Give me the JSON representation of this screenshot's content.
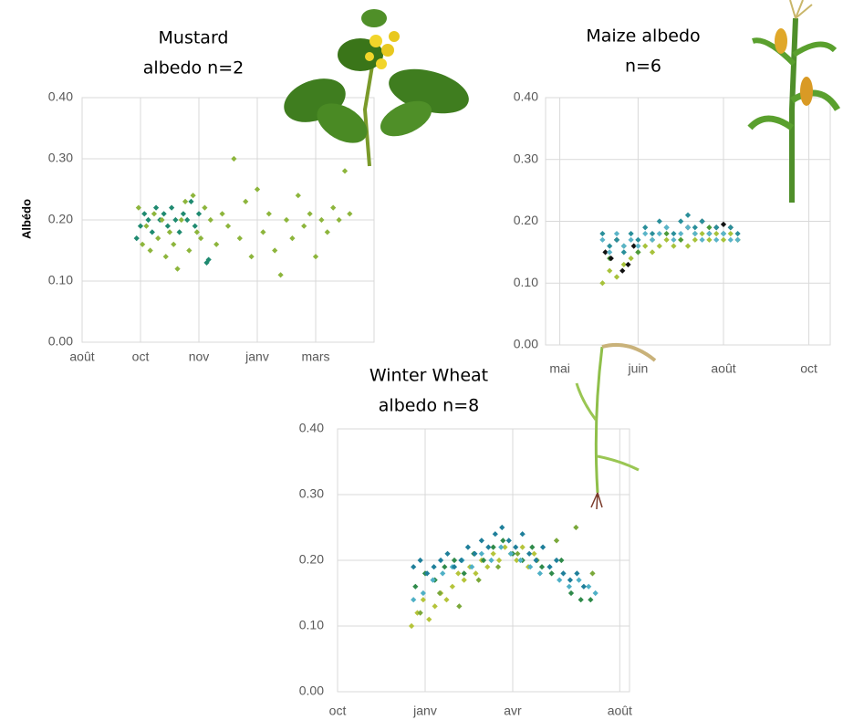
{
  "chart_data": [
    {
      "type": "scatter",
      "title": [
        "Mustard",
        "albedo n=2"
      ],
      "ylabel": "Albédo",
      "xlim": [
        0,
        300
      ],
      "ylim": [
        0,
        0.4
      ],
      "xticks": [
        {
          "value": 0,
          "label": "août"
        },
        {
          "value": 60,
          "label": "oct"
        },
        {
          "value": 120,
          "label": "nov"
        },
        {
          "value": 180,
          "label": "janv"
        },
        {
          "value": 240,
          "label": "mars"
        }
      ],
      "yticks": [
        {
          "value": 0,
          "label": "0.00"
        },
        {
          "value": 0.1,
          "label": "0.10"
        },
        {
          "value": 0.2,
          "label": "0.20"
        },
        {
          "value": 0.3,
          "label": "0.30"
        },
        {
          "value": 0.4,
          "label": "0.40"
        }
      ],
      "grid": true,
      "series": [
        {
          "color": "#1f8a70",
          "x": [
            56,
            60,
            64,
            68,
            72,
            76,
            80,
            84,
            88,
            92,
            96,
            100,
            104,
            108,
            112,
            116,
            120,
            128,
            130
          ],
          "values": [
            0.17,
            0.19,
            0.21,
            0.2,
            0.18,
            0.22,
            0.2,
            0.21,
            0.19,
            0.22,
            0.2,
            0.18,
            0.21,
            0.2,
            0.23,
            0.19,
            0.21,
            0.13,
            0.135
          ]
        },
        {
          "color": "#8db53c",
          "x": [
            58,
            62,
            66,
            70,
            74,
            78,
            82,
            86,
            90,
            94,
            98,
            102,
            106,
            110,
            114,
            118,
            122,
            126,
            132,
            138,
            144,
            150,
            156,
            162,
            168,
            174,
            180,
            186,
            192,
            198,
            204,
            210,
            216,
            222,
            228,
            234,
            240,
            246,
            252,
            258,
            264,
            270,
            275
          ],
          "values": [
            0.22,
            0.16,
            0.19,
            0.15,
            0.21,
            0.17,
            0.2,
            0.14,
            0.18,
            0.16,
            0.12,
            0.2,
            0.23,
            0.15,
            0.24,
            0.18,
            0.17,
            0.22,
            0.2,
            0.16,
            0.21,
            0.19,
            0.3,
            0.17,
            0.23,
            0.14,
            0.25,
            0.18,
            0.21,
            0.15,
            0.11,
            0.2,
            0.17,
            0.24,
            0.19,
            0.21,
            0.14,
            0.2,
            0.18,
            0.22,
            0.2,
            0.28,
            0.21
          ]
        }
      ]
    },
    {
      "type": "scatter",
      "title": [
        "Maize albedo",
        "n=6"
      ],
      "xlim": [
        0,
        200
      ],
      "ylim": [
        0,
        0.4
      ],
      "xticks": [
        {
          "value": 10,
          "label": "mai"
        },
        {
          "value": 65,
          "label": "juin"
        },
        {
          "value": 125,
          "label": "août"
        },
        {
          "value": 185,
          "label": "oct"
        }
      ],
      "yticks": [
        {
          "value": 0,
          "label": "0.00"
        },
        {
          "value": 0.1,
          "label": "0.10"
        },
        {
          "value": 0.2,
          "label": "0.20"
        },
        {
          "value": 0.3,
          "label": "0.30"
        },
        {
          "value": 0.4,
          "label": "0.40"
        }
      ],
      "grid": true,
      "series": [
        {
          "color": "#a7c23b",
          "x": [
            40,
            45,
            50,
            55,
            60,
            65,
            70,
            75,
            80,
            85,
            90,
            95,
            100,
            105,
            110,
            115,
            120,
            125,
            130,
            135
          ],
          "values": [
            0.1,
            0.12,
            0.11,
            0.13,
            0.14,
            0.15,
            0.16,
            0.15,
            0.16,
            0.17,
            0.16,
            0.17,
            0.16,
            0.17,
            0.18,
            0.17,
            0.18,
            0.17,
            0.18,
            0.17
          ]
        },
        {
          "color": "#4c9a3a",
          "x": [
            45,
            55,
            65,
            75,
            85,
            95,
            105,
            115,
            125,
            135
          ],
          "values": [
            0.14,
            0.16,
            0.15,
            0.17,
            0.18,
            0.17,
            0.18,
            0.19,
            0.18,
            0.17
          ]
        },
        {
          "color": "#111111",
          "x": [
            42,
            46,
            50,
            54,
            58,
            62,
            100,
            110,
            115,
            120,
            125,
            130
          ],
          "values": [
            0.15,
            0.14,
            0.17,
            0.12,
            0.13,
            0.16,
            0.19,
            0.2,
            0.18,
            0.19,
            0.195,
            0.19
          ]
        },
        {
          "color": "#2a8f9a",
          "x": [
            40,
            45,
            50,
            55,
            60,
            65,
            70,
            75,
            80,
            85,
            90,
            95,
            100,
            105,
            110,
            115,
            120,
            125,
            130,
            135
          ],
          "values": [
            0.18,
            0.16,
            0.17,
            0.15,
            0.18,
            0.17,
            0.19,
            0.18,
            0.2,
            0.19,
            0.18,
            0.2,
            0.21,
            0.19,
            0.2,
            0.18,
            0.19,
            0.18,
            0.19,
            0.18
          ]
        },
        {
          "color": "#5ab4c8",
          "x": [
            40,
            45,
            50,
            55,
            60,
            65,
            70,
            75,
            80,
            85,
            90,
            95,
            100,
            105,
            110,
            115,
            120,
            125,
            130,
            135
          ],
          "values": [
            0.17,
            0.15,
            0.18,
            0.16,
            0.17,
            0.16,
            0.18,
            0.17,
            0.18,
            0.19,
            0.17,
            0.18,
            0.19,
            0.18,
            0.17,
            0.18,
            0.17,
            0.18,
            0.17,
            0.17
          ]
        }
      ]
    },
    {
      "type": "scatter",
      "title": [
        "Winter Wheat",
        "albedo n=8"
      ],
      "xlim": [
        0,
        300
      ],
      "ylim": [
        0,
        0.4
      ],
      "xticks": [
        {
          "value": 0,
          "label": "oct"
        },
        {
          "value": 90,
          "label": "janv"
        },
        {
          "value": 180,
          "label": "avr"
        },
        {
          "value": 290,
          "label": "août"
        }
      ],
      "yticks": [
        {
          "value": 0,
          "label": "0.00"
        },
        {
          "value": 0.1,
          "label": "0.10"
        },
        {
          "value": 0.2,
          "label": "0.20"
        },
        {
          "value": 0.3,
          "label": "0.30"
        },
        {
          "value": 0.4,
          "label": "0.40"
        }
      ],
      "grid": true,
      "series": [
        {
          "color": "#b5c43a",
          "x": [
            76,
            82,
            88,
            94,
            100,
            106,
            112,
            118,
            124,
            130,
            136,
            142,
            148,
            154,
            160,
            166,
            172,
            178,
            184,
            190,
            196,
            202
          ],
          "values": [
            0.1,
            0.12,
            0.14,
            0.11,
            0.13,
            0.15,
            0.14,
            0.16,
            0.18,
            0.17,
            0.19,
            0.18,
            0.2,
            0.19,
            0.21,
            0.2,
            0.22,
            0.21,
            0.2,
            0.22,
            0.19,
            0.21
          ]
        },
        {
          "color": "#7aa83a",
          "x": [
            85,
            105,
            125,
            145,
            165,
            185,
            205,
            225,
            245,
            262
          ],
          "values": [
            0.12,
            0.15,
            0.13,
            0.17,
            0.19,
            0.21,
            0.2,
            0.23,
            0.25,
            0.18
          ]
        },
        {
          "color": "#2f8a4a",
          "x": [
            80,
            90,
            100,
            110,
            120,
            130,
            140,
            150,
            160,
            170,
            180,
            190,
            200,
            210,
            220,
            230,
            240,
            250,
            260
          ],
          "values": [
            0.16,
            0.18,
            0.17,
            0.19,
            0.2,
            0.18,
            0.21,
            0.2,
            0.22,
            0.23,
            0.21,
            0.2,
            0.22,
            0.19,
            0.18,
            0.2,
            0.15,
            0.14,
            0.14
          ]
        },
        {
          "color": "#4fb0c6",
          "x": [
            78,
            88,
            98,
            108,
            118,
            128,
            138,
            148,
            158,
            168,
            178,
            188,
            198,
            208,
            218,
            228,
            238,
            248,
            258,
            265
          ],
          "values": [
            0.14,
            0.15,
            0.17,
            0.18,
            0.19,
            0.2,
            0.19,
            0.21,
            0.2,
            0.22,
            0.21,
            0.2,
            0.19,
            0.18,
            0.19,
            0.17,
            0.16,
            0.17,
            0.16,
            0.15
          ]
        },
        {
          "color": "#1f7f9a",
          "x": [
            78,
            85,
            92,
            99,
            106,
            113,
            120,
            127,
            134,
            141,
            148,
            155,
            162,
            169,
            176,
            183,
            190,
            197,
            204,
            211,
            218,
            225,
            232,
            239,
            246,
            253
          ],
          "values": [
            0.19,
            0.2,
            0.18,
            0.19,
            0.2,
            0.21,
            0.19,
            0.2,
            0.22,
            0.21,
            0.23,
            0.22,
            0.24,
            0.25,
            0.23,
            0.22,
            0.24,
            0.21,
            0.2,
            0.22,
            0.19,
            0.2,
            0.18,
            0.17,
            0.18,
            0.16
          ]
        }
      ]
    }
  ]
}
